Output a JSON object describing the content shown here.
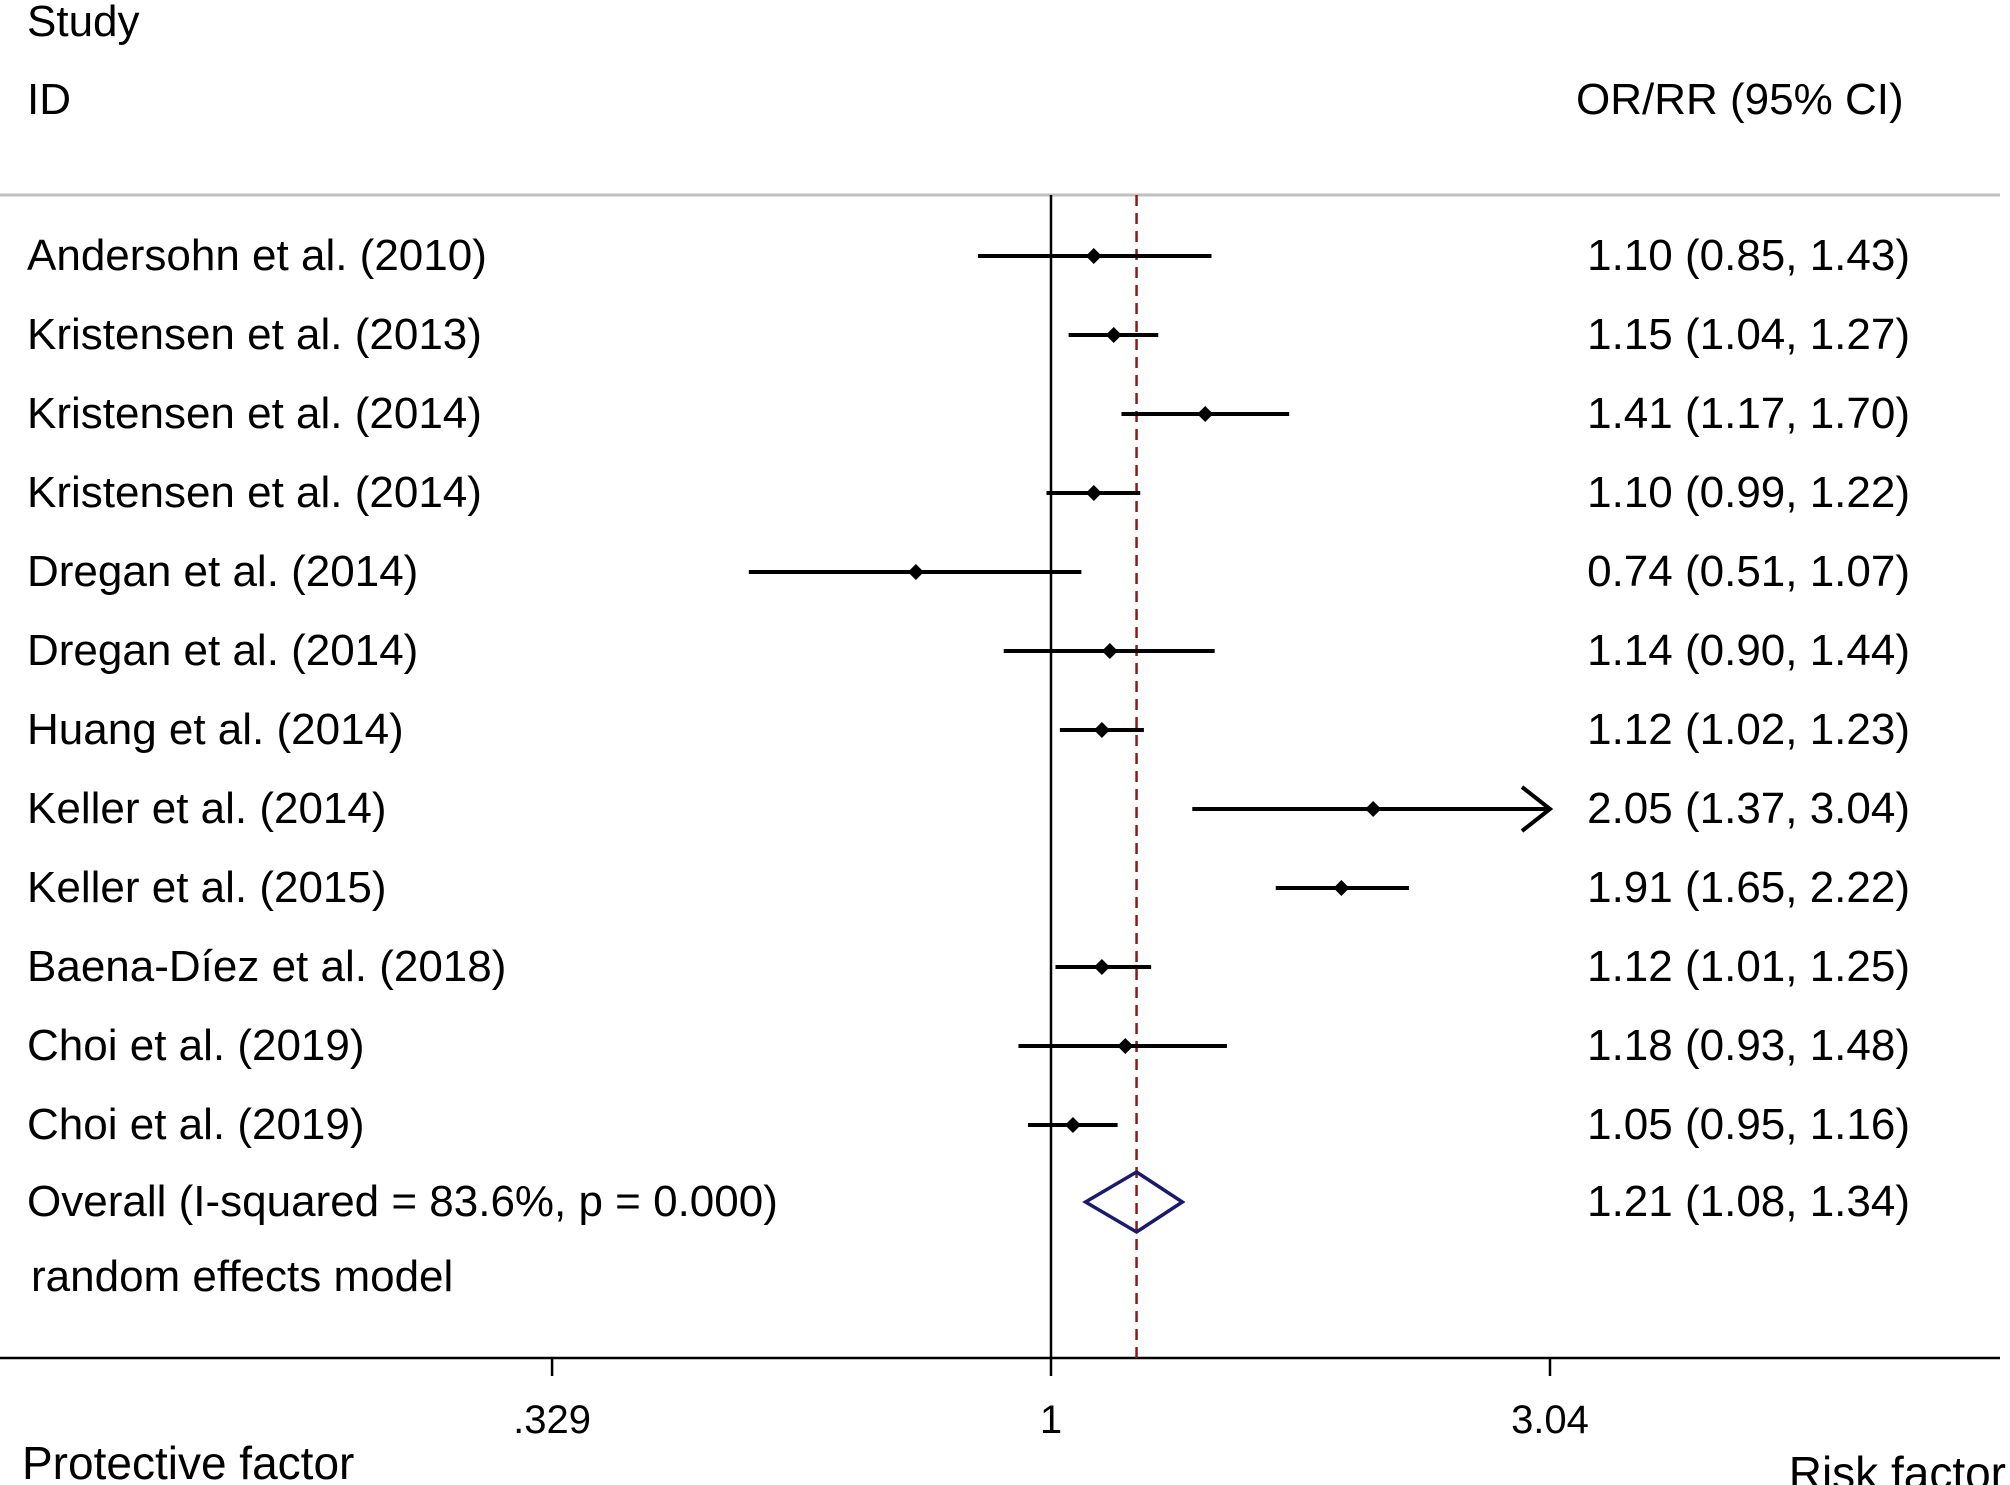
{
  "chart_data": {
    "type": "forest",
    "header": {
      "study_label": "Study",
      "id_label": "ID",
      "effect_label": "OR/RR (95% CI)"
    },
    "scale": "log",
    "null_value": 1,
    "xlim": [
      0.329,
      3.04
    ],
    "ticks": [
      {
        "value": 0.329,
        "label": ".329"
      },
      {
        "value": 1,
        "label": "1"
      },
      {
        "value": 3.04,
        "label": "3.04"
      }
    ],
    "studies": [
      {
        "label": "Andersohn et al. (2010)",
        "estimate": 1.1,
        "lower": 0.85,
        "upper": 1.43,
        "effect_text": "1.10 (0.85, 1.43)"
      },
      {
        "label": "Kristensen et al. (2013)",
        "estimate": 1.15,
        "lower": 1.04,
        "upper": 1.27,
        "effect_text": "1.15 (1.04, 1.27)"
      },
      {
        "label": "Kristensen et al. (2014)",
        "estimate": 1.41,
        "lower": 1.17,
        "upper": 1.7,
        "effect_text": "1.41 (1.17, 1.70)"
      },
      {
        "label": "Kristensen et al. (2014)",
        "estimate": 1.1,
        "lower": 0.99,
        "upper": 1.22,
        "effect_text": "1.10 (0.99, 1.22)"
      },
      {
        "label": "Dregan et al. (2014)",
        "estimate": 0.74,
        "lower": 0.51,
        "upper": 1.07,
        "effect_text": "0.74 (0.51, 1.07)"
      },
      {
        "label": "Dregan et al. (2014)",
        "estimate": 1.14,
        "lower": 0.9,
        "upper": 1.44,
        "effect_text": "1.14 (0.90, 1.44)"
      },
      {
        "label": "Huang et al. (2014)",
        "estimate": 1.12,
        "lower": 1.02,
        "upper": 1.23,
        "effect_text": "1.12 (1.02, 1.23)"
      },
      {
        "label": "Keller et al. (2014)",
        "estimate": 2.05,
        "lower": 1.37,
        "upper": 3.04,
        "effect_text": "2.05 (1.37, 3.04)",
        "arrow": true
      },
      {
        "label": "Keller et al. (2015)",
        "estimate": 1.91,
        "lower": 1.65,
        "upper": 2.22,
        "effect_text": "1.91 (1.65, 2.22)"
      },
      {
        "label": "Baena-Díez et al. (2018)",
        "estimate": 1.12,
        "lower": 1.01,
        "upper": 1.25,
        "effect_text": "1.12 (1.01, 1.25)"
      },
      {
        "label": "Choi et al. (2019)",
        "estimate": 1.18,
        "lower": 0.93,
        "upper": 1.48,
        "effect_text": "1.18 (0.93, 1.48)"
      },
      {
        "label": "Choi et al. (2019)",
        "estimate": 1.05,
        "lower": 0.95,
        "upper": 1.16,
        "effect_text": "1.05 (0.95, 1.16)"
      }
    ],
    "overall": {
      "label": "Overall  (I-squared = 83.6%, p = 0.000)",
      "estimate": 1.21,
      "lower": 1.08,
      "upper": 1.34,
      "effect_text": "1.21 (1.08, 1.34)",
      "model_note": "random effects model"
    },
    "footer": {
      "left_label": "Protective factor",
      "right_label": "Risk factor"
    },
    "colors": {
      "text": "#000000",
      "ci_line": "#000000",
      "null_line": "#000000",
      "overall_line": "#8b1a1a",
      "diamond": "#1a1a6e",
      "frame_top": "#c0c0c0"
    }
  }
}
